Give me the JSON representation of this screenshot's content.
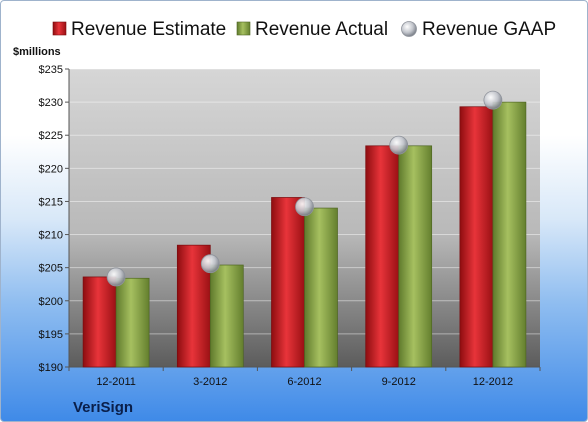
{
  "company": "VeriSign",
  "chart_data": {
    "type": "bar",
    "title": "",
    "unit_label": "$millions",
    "categories": [
      "12-2011",
      "3-2012",
      "6-2012",
      "9-2012",
      "12-2012"
    ],
    "series": [
      {
        "name": "Revenue Estimate",
        "kind": "bar",
        "color": "#c4161c",
        "values": [
          203.6,
          208.4,
          215.6,
          223.4,
          229.3
        ]
      },
      {
        "name": "Revenue Actual",
        "kind": "bar",
        "color": "#8aa645",
        "values": [
          203.4,
          205.4,
          214.0,
          223.4,
          230.0
        ]
      },
      {
        "name": "Revenue GAAP",
        "kind": "marker",
        "color": "#b8bcc4",
        "values": [
          203.6,
          205.6,
          214.2,
          223.5,
          230.3
        ]
      }
    ],
    "y_ticks": [
      "$190",
      "$195",
      "$200",
      "$205",
      "$210",
      "$215",
      "$220",
      "$225",
      "$230",
      "$235"
    ],
    "ylim": [
      190,
      235
    ],
    "grid": true,
    "legend_position": "top"
  }
}
